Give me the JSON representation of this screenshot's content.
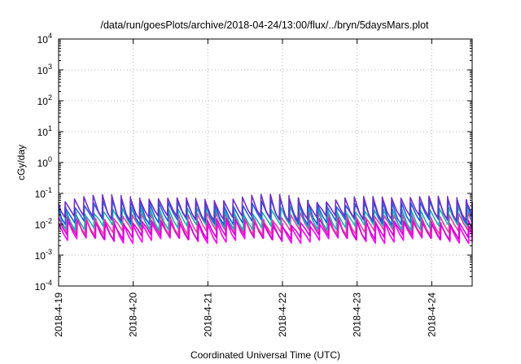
{
  "chart_data": {
    "type": "line",
    "title": "/data/run/goesPlots/archive/2018-04-24/13:00/flux/../bryn/5daysMars.plot",
    "xlabel": "Coordinated Universal Time (UTC)",
    "ylabel": "cGy/day",
    "y_scale": "log",
    "ylim": [
      0.0001,
      10000
    ],
    "xlim": [
      "2018-04-19 00:00",
      "2018-04-24 13:00"
    ],
    "y_ticks": [
      {
        "base": "10",
        "exp": "4"
      },
      {
        "base": "10",
        "exp": "3"
      },
      {
        "base": "10",
        "exp": "2"
      },
      {
        "base": "10",
        "exp": "1"
      },
      {
        "base": "10",
        "exp": "0"
      },
      {
        "base": "10",
        "exp": "-1"
      },
      {
        "base": "10",
        "exp": "-2"
      },
      {
        "base": "10",
        "exp": "-3"
      },
      {
        "base": "10",
        "exp": "-4"
      }
    ],
    "x_ticks": [
      "2018-4-19",
      "2018-4-20",
      "2018-4-21",
      "2018-4-22",
      "2018-4-23",
      "2018-4-24"
    ],
    "grid": true,
    "sawtooth_period_hours": 3,
    "series": [
      {
        "color": "#ff00ff",
        "peak": 0.011,
        "trough": 0.003
      },
      {
        "color": "#cc00cc",
        "peak": 0.013,
        "trough": 0.0038
      },
      {
        "color": "#e040a0",
        "peak": 0.02,
        "trough": 0.0055
      },
      {
        "color": "#20b0b0",
        "peak": 0.03,
        "trough": 0.008
      },
      {
        "color": "#2060e0",
        "peak": 0.05,
        "trough": 0.012
      },
      {
        "color": "#7030c0",
        "peak": 0.07,
        "trough": 0.016
      }
    ]
  }
}
